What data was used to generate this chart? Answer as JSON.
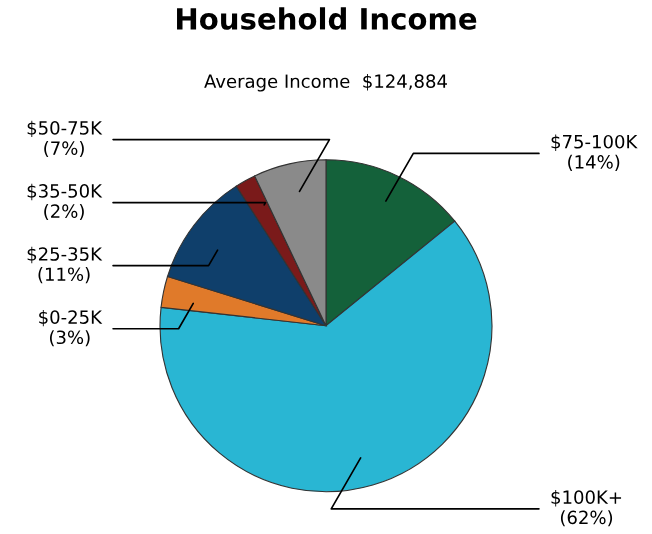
{
  "chart_data": {
    "type": "pie",
    "title": "Household Income",
    "subtitle": "Average Income  $124,884",
    "categories": [
      "$75-100K",
      "$100K+",
      "$0-25K",
      "$25-35K",
      "$35-50K",
      "$50-75K"
    ],
    "values": [
      14,
      62,
      3,
      11,
      2,
      7
    ],
    "value_labels": [
      "(14%)",
      "(62%)",
      "(3%)",
      "(11%)",
      "(2%)",
      "(7%)"
    ],
    "colors": [
      "#14613a",
      "#29b6d3",
      "#e07a2a",
      "#0f3f6b",
      "#7a1a1a",
      "#8a8a8a"
    ],
    "legend": false
  }
}
